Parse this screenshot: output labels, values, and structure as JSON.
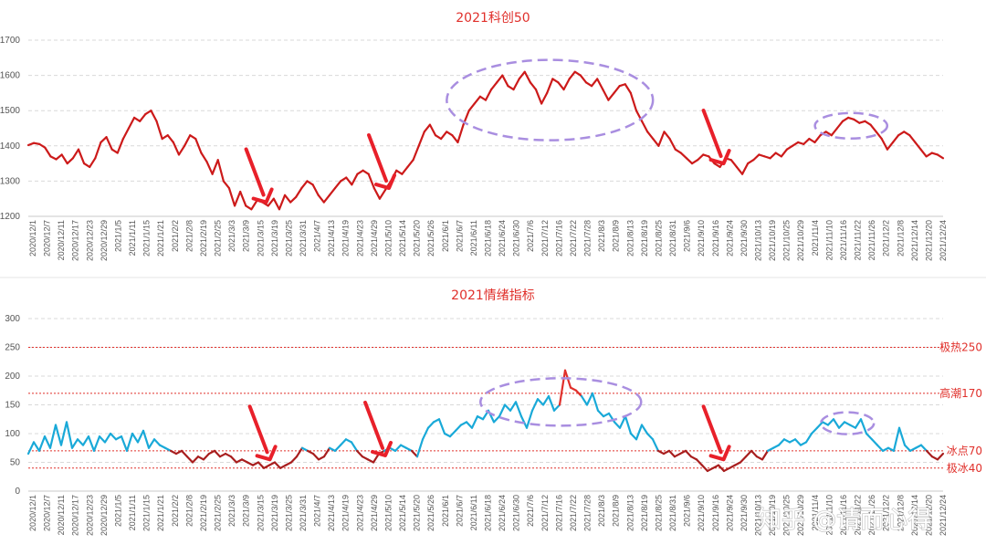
{
  "chart_data": [
    {
      "type": "line",
      "title": "2021科创50",
      "ylim": [
        1200,
        1700
      ],
      "yticks": [
        1200,
        1300,
        1400,
        1500,
        1600,
        1700
      ],
      "grid": true,
      "color": "#cc1a1a",
      "x_tick_labels": [
        "2020/12/1",
        "2020/12/7",
        "2020/12/11",
        "2020/12/17",
        "2020/12/23",
        "2020/12/29",
        "2021/1/5",
        "2021/1/11",
        "2021/1/15",
        "2021/1/21",
        "2021/2/2",
        "2021/2/8",
        "2021/2/19",
        "2021/2/25",
        "2021/3/3",
        "2021/3/9",
        "2021/3/15",
        "2021/3/19",
        "2021/3/25",
        "2021/3/31",
        "2021/4/7",
        "2021/4/13",
        "2021/4/19",
        "2021/4/23",
        "2021/4/29",
        "2021/5/10",
        "2021/5/14",
        "2021/5/20",
        "2021/5/26",
        "2021/6/1",
        "2021/6/7",
        "2021/6/11",
        "2021/6/18",
        "2021/6/24",
        "2021/6/30",
        "2021/7/6",
        "2021/7/12",
        "2021/7/16",
        "2021/7/22",
        "2021/7/28",
        "2021/8/3",
        "2021/8/9",
        "2021/8/13",
        "2021/8/19",
        "2021/8/25",
        "2021/8/31",
        "2021/9/6",
        "2021/9/10",
        "2021/9/16",
        "2021/9/24",
        "2021/9/30",
        "2021/10/13",
        "2021/10/19",
        "2021/10/25",
        "2021/10/29",
        "2021/11/4",
        "2021/11/10",
        "2021/11/16",
        "2021/11/22",
        "2021/11/26",
        "2021/12/2",
        "2021/12/8",
        "2021/12/14",
        "2021/12/20",
        "2021/12/24"
      ],
      "values": [
        1402,
        1408,
        1405,
        1395,
        1370,
        1362,
        1375,
        1350,
        1365,
        1390,
        1350,
        1340,
        1365,
        1410,
        1425,
        1390,
        1380,
        1420,
        1450,
        1480,
        1470,
        1490,
        1500,
        1470,
        1420,
        1430,
        1410,
        1375,
        1400,
        1430,
        1420,
        1380,
        1355,
        1320,
        1360,
        1300,
        1280,
        1230,
        1270,
        1230,
        1220,
        1245,
        1240,
        1230,
        1250,
        1220,
        1260,
        1240,
        1255,
        1280,
        1300,
        1290,
        1260,
        1240,
        1260,
        1280,
        1300,
        1310,
        1290,
        1320,
        1330,
        1320,
        1280,
        1250,
        1275,
        1300,
        1330,
        1320,
        1340,
        1360,
        1400,
        1440,
        1460,
        1430,
        1420,
        1440,
        1430,
        1410,
        1460,
        1500,
        1520,
        1540,
        1530,
        1560,
        1580,
        1600,
        1570,
        1560,
        1590,
        1610,
        1580,
        1560,
        1520,
        1550,
        1590,
        1580,
        1560,
        1590,
        1610,
        1600,
        1580,
        1570,
        1590,
        1560,
        1530,
        1550,
        1570,
        1575,
        1550,
        1500,
        1470,
        1440,
        1420,
        1400,
        1440,
        1420,
        1390,
        1380,
        1365,
        1350,
        1360,
        1375,
        1370,
        1350,
        1340,
        1365,
        1360,
        1340,
        1320,
        1350,
        1360,
        1375,
        1370,
        1365,
        1380,
        1370,
        1390,
        1400,
        1410,
        1405,
        1420,
        1410,
        1430,
        1440,
        1430,
        1450,
        1470,
        1480,
        1475,
        1465,
        1470,
        1460,
        1440,
        1420,
        1390,
        1410,
        1430,
        1440,
        1430,
        1410,
        1390,
        1370,
        1380,
        1375,
        1365
      ],
      "annotations": {
        "arrows": [
          {
            "x_index": 42,
            "value": 1235
          },
          {
            "x_index": 64,
            "value": 1275
          },
          {
            "x_index": 124,
            "value": 1345
          }
        ],
        "ellipses": [
          {
            "x_start": 76,
            "x_end": 111,
            "value": 1530
          },
          {
            "x_start": 142,
            "x_end": 153,
            "value": 1470
          }
        ]
      }
    },
    {
      "type": "line",
      "title": "2021情绪指标",
      "ylim": [
        0,
        300
      ],
      "yticks": [
        0,
        50,
        100,
        150,
        200,
        250,
        300
      ],
      "grid": true,
      "colors": {
        "cold": "#a81e1e",
        "normal": "#19a9d8",
        "hot": "#e0302b"
      },
      "color_thresholds": {
        "cold_below": 70,
        "hot_above": 170
      },
      "reference_lines": [
        {
          "label": "极热250",
          "value": 250
        },
        {
          "label": "高潮170",
          "value": 170
        },
        {
          "label": "冰点70",
          "value": 70
        },
        {
          "label": "极冰40",
          "value": 40
        }
      ],
      "x_tick_labels": [
        "2020/12/1",
        "2020/12/7",
        "2020/12/11",
        "2020/12/17",
        "2020/12/23",
        "2020/12/29",
        "2021/1/5",
        "2021/1/11",
        "2021/1/15",
        "2021/1/21",
        "2021/2/2",
        "2021/2/8",
        "2021/2/19",
        "2021/2/25",
        "2021/3/3",
        "2021/3/9",
        "2021/3/15",
        "2021/3/19",
        "2021/3/25",
        "2021/3/31",
        "2021/4/7",
        "2021/4/13",
        "2021/4/19",
        "2021/4/23",
        "2021/4/29",
        "2021/5/10",
        "2021/5/14",
        "2021/5/20",
        "2021/5/26",
        "2021/6/1",
        "2021/6/7",
        "2021/6/11",
        "2021/6/18",
        "2021/6/24",
        "2021/6/30",
        "2021/7/6",
        "2021/7/12",
        "2021/7/16",
        "2021/7/22",
        "2021/7/28",
        "2021/8/3",
        "2021/8/9",
        "2021/8/13",
        "2021/8/19",
        "2021/8/25",
        "2021/8/31",
        "2021/9/6",
        "2021/9/10",
        "2021/9/16",
        "2021/9/24",
        "2021/9/30",
        "2021/10/13",
        "2021/10/19",
        "2021/10/25",
        "2021/10/29",
        "2021/11/4",
        "2021/11/10",
        "2021/11/16",
        "2021/11/22",
        "2021/11/26",
        "2021/12/2",
        "2021/12/8",
        "2021/12/14",
        "2021/12/20",
        "2021/12/24"
      ],
      "values": [
        65,
        85,
        70,
        95,
        75,
        115,
        80,
        120,
        75,
        90,
        80,
        95,
        70,
        95,
        85,
        100,
        90,
        95,
        70,
        100,
        85,
        105,
        75,
        90,
        80,
        75,
        70,
        65,
        70,
        60,
        50,
        60,
        55,
        65,
        70,
        60,
        65,
        60,
        50,
        55,
        50,
        45,
        50,
        40,
        45,
        50,
        40,
        45,
        50,
        60,
        75,
        70,
        65,
        55,
        60,
        75,
        70,
        80,
        90,
        85,
        70,
        60,
        55,
        50,
        65,
        70,
        75,
        70,
        80,
        75,
        70,
        60,
        90,
        110,
        120,
        125,
        100,
        95,
        105,
        115,
        120,
        110,
        130,
        125,
        140,
        120,
        130,
        150,
        140,
        155,
        130,
        110,
        140,
        160,
        150,
        165,
        140,
        150,
        210,
        180,
        175,
        165,
        150,
        170,
        140,
        130,
        135,
        120,
        110,
        130,
        100,
        90,
        115,
        100,
        90,
        70,
        65,
        70,
        60,
        65,
        70,
        60,
        55,
        45,
        35,
        40,
        45,
        35,
        40,
        45,
        50,
        60,
        70,
        60,
        55,
        70,
        75,
        80,
        90,
        85,
        90,
        80,
        85,
        100,
        110,
        120,
        115,
        125,
        110,
        120,
        115,
        110,
        125,
        100,
        90,
        80,
        70,
        75,
        70,
        110,
        80,
        70,
        75,
        80,
        70,
        60,
        55,
        65
      ]
    }
  ],
  "watermark": "知乎 @请而心得"
}
